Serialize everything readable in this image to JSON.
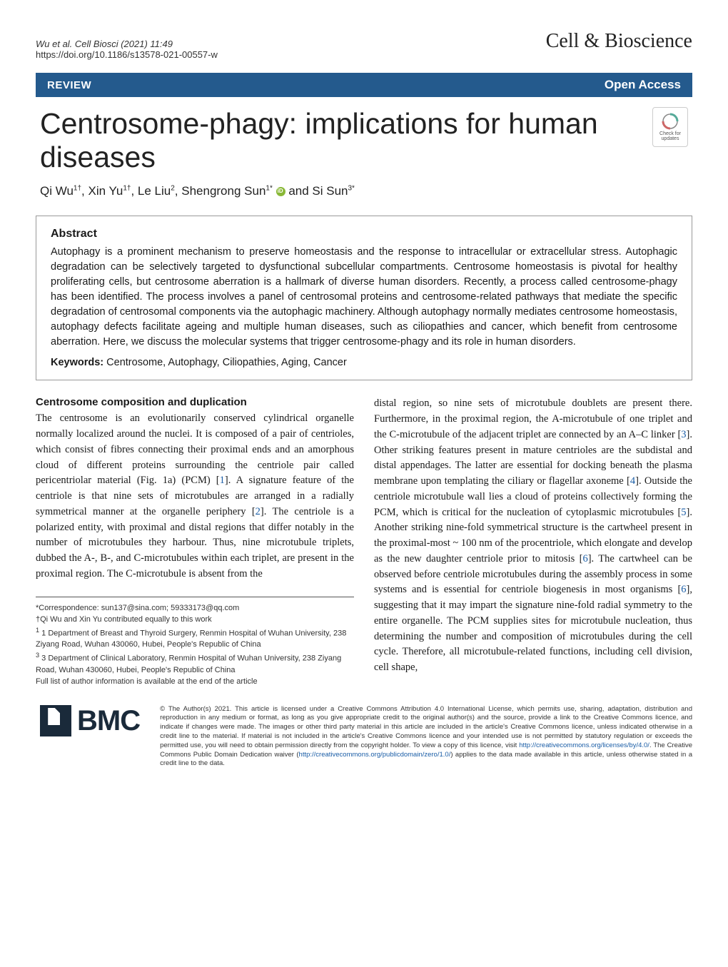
{
  "header": {
    "citation_line1": "Wu et al. Cell Biosci     (2021) 11:49",
    "citation_line2": "https://doi.org/10.1186/s13578-021-00557-w",
    "journal": "Cell & Bioscience"
  },
  "banner": {
    "left": "REVIEW",
    "right": "Open Access"
  },
  "title": "Centrosome-phagy: implications for human diseases",
  "check_updates": "Check for updates",
  "authors_html": "Qi Wu<sup>1†</sup>, Xin Yu<sup>1†</sup>, Le Liu<sup>2</sup>, Shengrong Sun<sup>1*</sup> <span class=\"orcid\" data-name=\"orcid-icon\" data-interactable=\"false\"></span> and Si Sun<sup>3*</sup>",
  "abstract": {
    "heading": "Abstract",
    "text": "Autophagy is a prominent mechanism to preserve homeostasis and the response to intracellular or extracellular stress. Autophagic degradation can be selectively targeted to dysfunctional subcellular compartments. Centrosome homeostasis is pivotal for healthy proliferating cells, but centrosome aberration is a hallmark of diverse human disorders. Recently, a process called centrosome-phagy has been identified. The process involves a panel of centrosomal proteins and centrosome-related pathways that mediate the specific degradation of centrosomal components via the autophagic machinery. Although autophagy normally mediates centrosome homeostasis, autophagy defects facilitate ageing and multiple human diseases, such as ciliopathies and cancer, which benefit from centrosome aberration. Here, we discuss the molecular systems that trigger centrosome-phagy and its role in human disorders.",
    "keywords_label": "Keywords:",
    "keywords": "Centrosome, Autophagy, Ciliopathies, Aging, Cancer"
  },
  "section": {
    "heading": "Centrosome composition and duplication",
    "left_col": "The centrosome is an evolutionarily conserved cylindrical organelle normally localized around the nuclei. It is composed of a pair of centrioles, which consist of fibres connecting their proximal ends and an amorphous cloud of different proteins surrounding the centriole pair called pericentriolar material (Fig. 1a) (PCM) [<span class=\"ref\">1</span>]. A signature feature of the centriole is that nine sets of microtubules are arranged in a radially symmetrical manner at the organelle periphery [<span class=\"ref\">2</span>]. The centriole is a polarized entity, with proximal and distal regions that differ notably in the number of microtubules they harbour. Thus, nine microtubule triplets, dubbed the A-, B-, and C-microtubules within each triplet, are present in the proximal region. The C-microtubule is absent from the",
    "right_col": "distal region, so nine sets of microtubule doublets are present there. Furthermore, in the proximal region, the A-microtubule of one triplet and the C-microtubule of the adjacent triplet are connected by an A–C linker [<span class=\"ref\">3</span>]. Other striking features present in mature centrioles are the subdistal and distal appendages. The latter are essential for docking beneath the plasma membrane upon templating the ciliary or flagellar axoneme [<span class=\"ref\">4</span>]. Outside the centriole microtubule wall lies a cloud of proteins collectively forming the PCM, which is critical for the nucleation of cytoplasmic microtubules [<span class=\"ref\">5</span>]. Another striking nine-fold symmetrical structure is the cartwheel present in the proximal-most ~ 100 nm of the procentriole, which elongate and develop as the new daughter centriole prior to mitosis [<span class=\"ref\">6</span>]. The cartwheel can be observed before centriole microtubules during the assembly process in some systems and is essential for centriole biogenesis in most organisms [<span class=\"ref\">6</span>], suggesting that it may impart the signature nine-fold radial symmetry to the entire organelle. The PCM supplies sites for microtubule nucleation, thus determining the number and composition of microtubules during the cell cycle. Therefore, all microtubule-related functions, including cell division, cell shape,"
  },
  "footnotes": {
    "correspondence": "*Correspondence: sun137@sina.com; 59333173@qq.com",
    "equal": "†Qi Wu and Xin Yu contributed equally to this work",
    "aff1": "1 Department of Breast and Thyroid Surgery, Renmin Hospital of Wuhan University, 238 Ziyang Road, Wuhan 430060, Hubei, People's Republic of China",
    "aff3": "3 Department of Clinical Laboratory, Renmin Hospital of Wuhan University, 238 Ziyang Road, Wuhan 430060, Hubei, People's Republic of China",
    "full_list": "Full list of author information is available at the end of the article"
  },
  "bmc": "BMC",
  "license": "© The Author(s) 2021. This article is licensed under a Creative Commons Attribution 4.0 International License, which permits use, sharing, adaptation, distribution and reproduction in any medium or format, as long as you give appropriate credit to the original author(s) and the source, provide a link to the Creative Commons licence, and indicate if changes were made. The images or other third party material in this article are included in the article's Creative Commons licence, unless indicated otherwise in a credit line to the material. If material is not included in the article's Creative Commons licence and your intended use is not permitted by statutory regulation or exceeds the permitted use, you will need to obtain permission directly from the copyright holder. To view a copy of this licence, visit <a href=\"#\">http://creativecommons.org/licenses/by/4.0/</a>. The Creative Commons Public Domain Dedication waiver (<a href=\"#\">http://creativecommons.org/publicdomain/zero/1.0/</a>) applies to the data made available in this article, unless otherwise stated in a credit line to the data.",
  "colors": {
    "banner_bg": "#245a8d",
    "link": "#1a5da6",
    "orcid": "#89b837",
    "bmc": "#1a2a3a"
  }
}
